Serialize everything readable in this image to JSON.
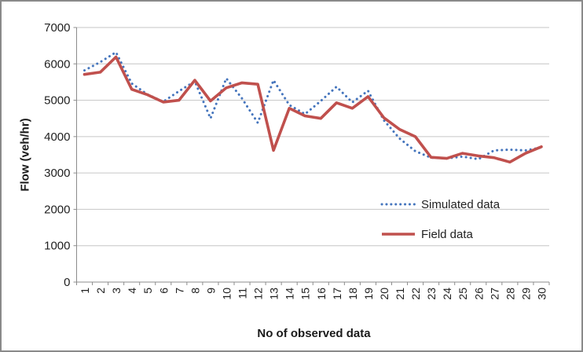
{
  "figure": {
    "description": "line chart comparing simulated and field traffic flow"
  },
  "chart_data": {
    "type": "line",
    "title": "",
    "xlabel": "No of observed data",
    "ylabel": "Flow (veh/hr)",
    "x_tick_labels": [
      "1",
      "2",
      "3",
      "4",
      "5",
      "6",
      "7",
      "8",
      "9",
      "10",
      "11",
      "12",
      "13",
      "14",
      "15",
      "16",
      "17",
      "18",
      "19",
      "20",
      "21",
      "22",
      "23",
      "24",
      "25",
      "26",
      "27",
      "28",
      "29",
      "30"
    ],
    "y_tick_labels": [
      "0",
      "1000",
      "2000",
      "3000",
      "4000",
      "5000",
      "6000",
      "7000"
    ],
    "ylim": [
      0,
      7000
    ],
    "grid": true,
    "legend_position": "inside-right-middle",
    "series": [
      {
        "name": "Simulated data",
        "style": "dotted",
        "color": "#4575BD",
        "values": [
          5820,
          6050,
          6320,
          5460,
          5160,
          4960,
          5250,
          5520,
          4500,
          5600,
          5050,
          4380,
          5550,
          4870,
          4620,
          4980,
          5370,
          4940,
          5260,
          4450,
          3950,
          3600,
          3420,
          3400,
          3450,
          3380,
          3620,
          3640,
          3620,
          3700
        ]
      },
      {
        "name": "Field data",
        "style": "solid",
        "color": "#C0504D",
        "values": [
          5710,
          5770,
          6190,
          5300,
          5150,
          4950,
          5000,
          5550,
          4980,
          5340,
          5480,
          5440,
          3620,
          4780,
          4570,
          4500,
          4930,
          4780,
          5100,
          4520,
          4200,
          4000,
          3430,
          3400,
          3540,
          3470,
          3420,
          3300,
          3540,
          3720
        ]
      }
    ]
  },
  "colors": {
    "grid": "#C6C6C6",
    "axis": "#8C8C8C",
    "tick_text": "#1F1F1F",
    "border": "#8A8A8A",
    "background": "#FFFFFF"
  }
}
